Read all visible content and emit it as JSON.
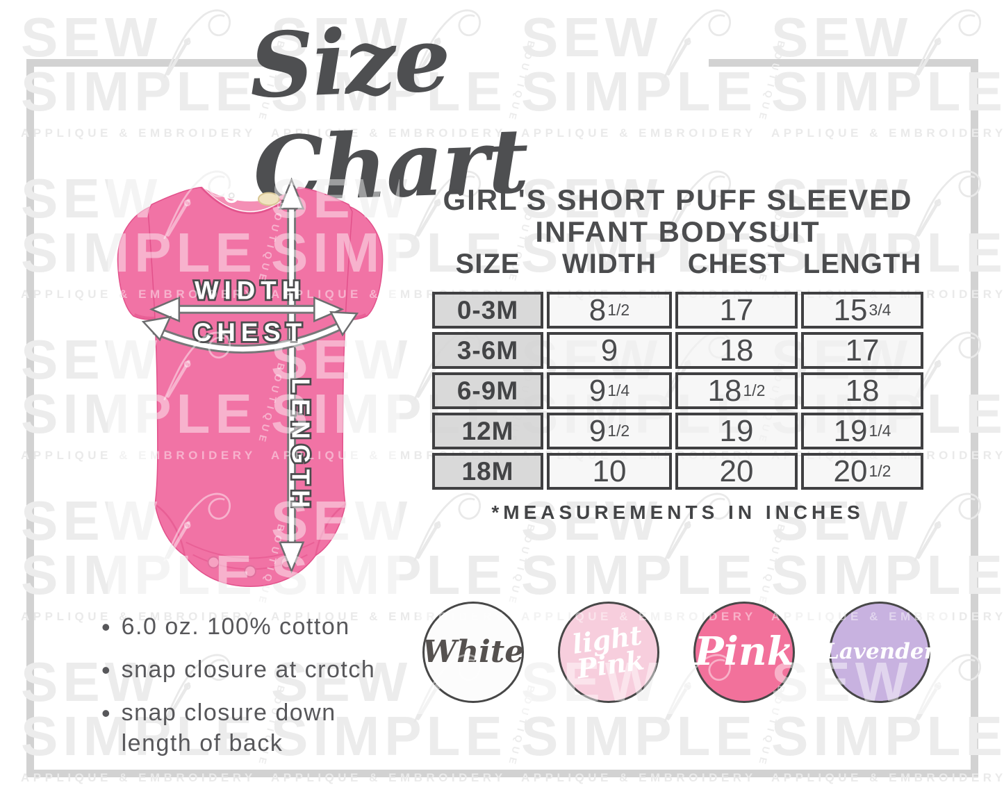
{
  "title": "Size Chart",
  "watermark": {
    "line1": "SEW",
    "line2": "SIMPLE",
    "sub": "APPLIQUE & EMBROIDERY",
    "side": "BOUTIQUE",
    "needle_icon": "needle-thread-icon",
    "color": "#ececec"
  },
  "frame_color": "#d2d2d2",
  "product": {
    "title_line1": "GIRL'S SHORT PUFF SLEEVED",
    "title_line2": "INFANT BODYSUIT"
  },
  "diagram": {
    "labels": {
      "width": "WIDTH",
      "chest": "CHEST",
      "length": "LENGTH"
    },
    "garment_color": "#f173a5",
    "seam_color": "#e2518b"
  },
  "size_table": {
    "headers": [
      "SIZE",
      "WIDTH",
      "CHEST",
      "LENGTH"
    ],
    "rows": [
      [
        "0-3M",
        "8^1/2",
        "17",
        "15^3/4"
      ],
      [
        "3-6M",
        "9",
        "18",
        "17"
      ],
      [
        "6-9M",
        "9^1/4",
        "18^1/2",
        "18"
      ],
      [
        "12M",
        "9^1/2",
        "19",
        "19^1/4"
      ],
      [
        "18M",
        "10",
        "20",
        "20^1/2"
      ]
    ],
    "footnote": "*MEASUREMENTS IN INCHES"
  },
  "features": [
    "6.0 oz. 100% cotton",
    "snap closure at crotch",
    "snap closure down length of back"
  ],
  "colors": [
    {
      "name": "White",
      "label_lines": [
        "White"
      ],
      "fill": "#fcfcfc",
      "text_color": "#55514f"
    },
    {
      "name": "light Pink",
      "label_lines": [
        "light",
        "Pink"
      ],
      "fill": "#f7cedd",
      "text_color": "#ffffff"
    },
    {
      "name": "Pink",
      "label_lines": [
        "Pink"
      ],
      "fill": "#f2719b",
      "text_color": "#ffffff"
    },
    {
      "name": "Lavender",
      "label_lines": [
        "Lavender"
      ],
      "fill": "#c8b2e0",
      "text_color": "#ffffff"
    }
  ],
  "chart_data": {
    "type": "table",
    "title": "GIRL'S SHORT PUFF SLEEVED INFANT BODYSUIT",
    "columns": [
      "SIZE",
      "WIDTH",
      "CHEST",
      "LENGTH"
    ],
    "rows": [
      [
        "0-3M",
        8.5,
        17,
        15.75
      ],
      [
        "3-6M",
        9,
        18,
        17
      ],
      [
        "6-9M",
        9.25,
        18.5,
        18
      ],
      [
        "12M",
        9.5,
        19,
        19.25
      ],
      [
        "18M",
        10,
        20,
        20.5
      ]
    ],
    "units": "inches",
    "footnote": "*MEASUREMENTS IN INCHES"
  }
}
